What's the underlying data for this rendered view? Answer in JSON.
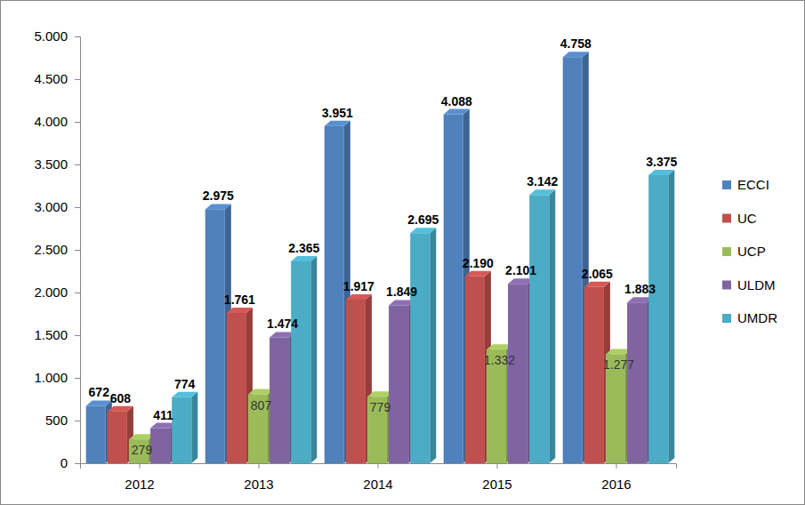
{
  "chart_data": {
    "type": "bar",
    "categories": [
      "2012",
      "2013",
      "2014",
      "2015",
      "2016"
    ],
    "series": [
      {
        "name": "ECCI",
        "color": "#4f81bd",
        "values": [
          672,
          2975,
          3951,
          4088,
          4758
        ],
        "value_labels": [
          "672",
          "2.975",
          "3.951",
          "4.088",
          "4.758"
        ]
      },
      {
        "name": "UC",
        "color": "#c0504d",
        "values": [
          608,
          1761,
          1917,
          2190,
          2065
        ],
        "value_labels": [
          "608",
          "1.761",
          "1.917",
          "2.190",
          "2.065"
        ]
      },
      {
        "name": "UCP",
        "color": "#9bbb59",
        "values": [
          279,
          807,
          779,
          1332,
          1277
        ],
        "value_labels": [
          "279",
          "807",
          "779",
          "1.332",
          "1.277"
        ]
      },
      {
        "name": "ULDM",
        "color": "#8064a2",
        "values": [
          411,
          1474,
          1849,
          2101,
          1883
        ],
        "value_labels": [
          "411",
          "1.474",
          "1.849",
          "2.101",
          "1.883"
        ]
      },
      {
        "name": "UMDR",
        "color": "#4bacc6",
        "values": [
          774,
          2365,
          2695,
          3142,
          3375
        ],
        "value_labels": [
          "774",
          "2.365",
          "2.695",
          "3.142",
          "3.375"
        ]
      }
    ],
    "ylim": [
      0,
      5000
    ],
    "yticks": [
      0,
      500,
      {
        "value": 1000,
        "label": "1.000"
      },
      {
        "value": 1500,
        "label": "1.500"
      },
      {
        "value": 2000,
        "label": "2.000"
      },
      {
        "value": 2500,
        "label": "2.500"
      },
      {
        "value": 3000,
        "label": "3.000"
      },
      {
        "value": 3500,
        "label": "3.500"
      },
      {
        "value": 4000,
        "label": "4.000"
      },
      {
        "value": 4500,
        "label": "4.500"
      },
      {
        "value": 5000,
        "label": "5.000"
      }
    ],
    "grid": false,
    "legend": "right",
    "data_labels": true
  }
}
